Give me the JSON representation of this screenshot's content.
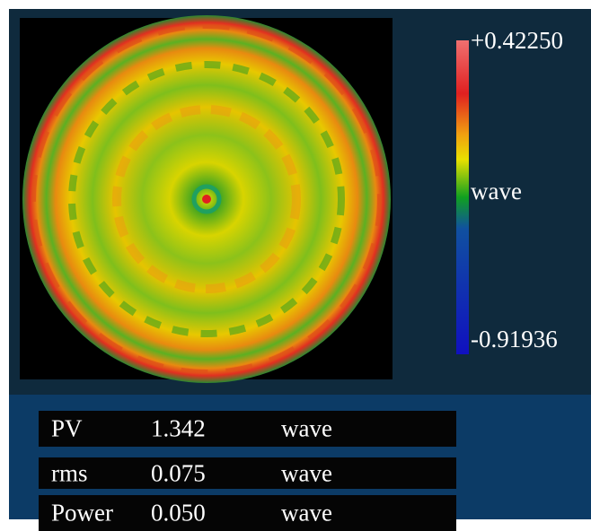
{
  "colorbar": {
    "max_label": "+0.42250",
    "unit_label": "wave",
    "min_label": "-0.91936"
  },
  "table": {
    "rows": [
      [
        "PV",
        "1.342",
        "wave"
      ],
      [
        "rms",
        "0.075",
        "wave"
      ],
      [
        "Power",
        "0.050",
        "wave"
      ]
    ]
  }
}
